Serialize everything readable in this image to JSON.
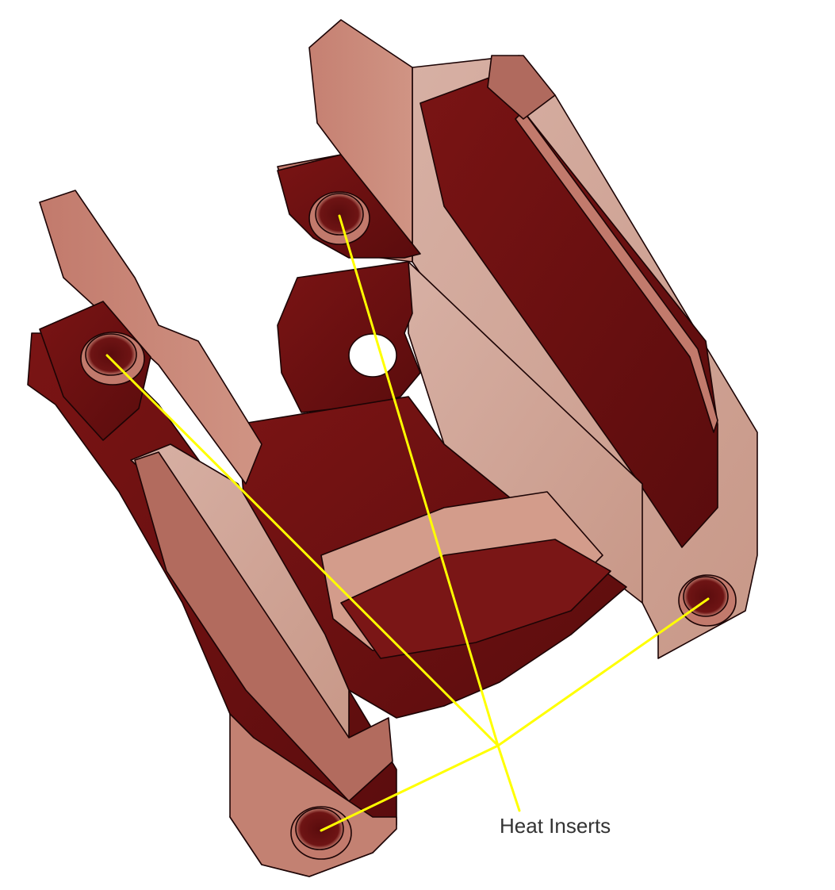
{
  "annotation": {
    "label": "Heat Inserts"
  },
  "colors": {
    "background": "#ffffff",
    "part_dark": "#681012",
    "part_mid": "#8e2a25",
    "part_light": "#c9877a",
    "part_pale": "#d3a99c",
    "edge": "#1c0405",
    "leader": "#ffff00",
    "text": "#333333"
  },
  "icons": {
    "part": "3d-printed-part-render"
  }
}
